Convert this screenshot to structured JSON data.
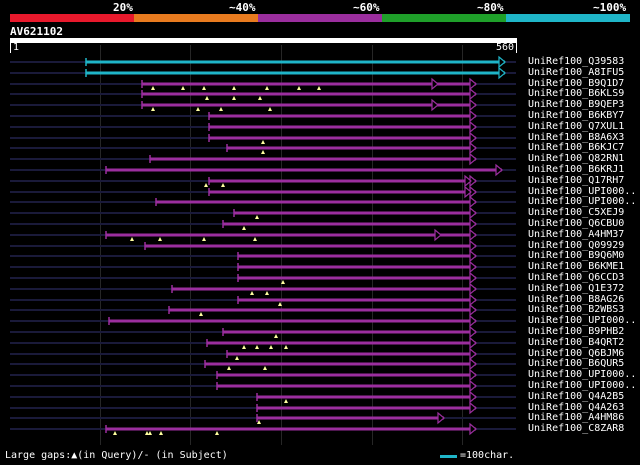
{
  "legend": {
    "labels": [
      "20%",
      "~40%",
      "~60%",
      "~80%",
      "~100%"
    ],
    "colors": [
      "#e8192c",
      "#e87b1f",
      "#9b2e9e",
      "#1fa02a",
      "#1fb5c8"
    ]
  },
  "query": {
    "id": "AV621102",
    "start_label": "1",
    "end_label": "560"
  },
  "hits": [
    {
      "id": "UniRef100_Q39583",
      "start": 116,
      "end": 752,
      "color": "#1fb5c8",
      "tri": [],
      "end_arrow": true
    },
    {
      "id": "UniRef100_A8IFU5",
      "start": 116,
      "end": 752,
      "color": "#1fb5c8",
      "tri": [],
      "end_arrow": true
    },
    {
      "id": "UniRef100_B9Q1D7",
      "start": 200,
      "end": 708,
      "color": "#9b2e9e",
      "tri": [
        218,
        263,
        295,
        340,
        390,
        440,
        470
      ],
      "end_arrow": true,
      "mid_arrow": 650
    },
    {
      "id": "UniRef100_B6KLS9",
      "start": 200,
      "end": 708,
      "color": "#9b2e9e",
      "tri": [
        300,
        340,
        380
      ],
      "end_arrow": true
    },
    {
      "id": "UniRef100_B9QEP3",
      "start": 200,
      "end": 708,
      "color": "#9b2e9e",
      "tri": [
        218,
        285,
        320,
        395
      ],
      "end_arrow": true,
      "mid_arrow": 650
    },
    {
      "id": "UniRef100_B6KBY7",
      "start": 302,
      "end": 708,
      "color": "#9b2e9e",
      "tri": [],
      "end_arrow": true
    },
    {
      "id": "UniRef100_Q7XUL1",
      "start": 302,
      "end": 708,
      "color": "#9b2e9e",
      "tri": [],
      "end_arrow": true
    },
    {
      "id": "UniRef100_B8A6X3",
      "start": 302,
      "end": 708,
      "color": "#9b2e9e",
      "tri": [
        385
      ],
      "end_arrow": true
    },
    {
      "id": "UniRef100_B6KJC7",
      "start": 330,
      "end": 708,
      "color": "#9b2e9e",
      "tri": [
        385
      ],
      "end_arrow": true
    },
    {
      "id": "UniRef100_Q82RN1",
      "start": 213,
      "end": 708,
      "color": "#9b2e9e",
      "tri": [],
      "end_arrow": true
    },
    {
      "id": "UniRef100_B6KRJ1",
      "start": 146,
      "end": 748,
      "color": "#9b2e9e",
      "tri": [],
      "end_arrow": true
    },
    {
      "id": "UniRef100_Q17RH7",
      "start": 302,
      "end": 708,
      "color": "#9b2e9e",
      "tri": [
        298,
        323
      ],
      "end_arrow": true,
      "mid_arrow": 700
    },
    {
      "id": "UniRef100_UPI000..",
      "start": 302,
      "end": 708,
      "color": "#9b2e9e",
      "tri": [],
      "end_arrow": true,
      "mid_arrow": 700
    },
    {
      "id": "UniRef100_UPI000..",
      "start": 222,
      "end": 708,
      "color": "#9b2e9e",
      "tri": [],
      "end_arrow": true
    },
    {
      "id": "UniRef100_C5XEJ9",
      "start": 341,
      "end": 708,
      "color": "#9b2e9e",
      "tri": [
        375
      ],
      "end_arrow": true
    },
    {
      "id": "UniRef100_Q6CBU0",
      "start": 323,
      "end": 708,
      "color": "#9b2e9e",
      "tri": [
        355
      ],
      "end_arrow": true
    },
    {
      "id": "UniRef100_A4HM37",
      "start": 146,
      "end": 708,
      "color": "#9b2e9e",
      "tri": [
        186,
        228,
        295,
        373
      ],
      "end_arrow": true,
      "mid_arrow": 655
    },
    {
      "id": "UniRef100_Q09929",
      "start": 205,
      "end": 708,
      "color": "#9b2e9e",
      "tri": [],
      "end_arrow": true
    },
    {
      "id": "UniRef100_B9Q6M0",
      "start": 347,
      "end": 708,
      "color": "#9b2e9e",
      "tri": [],
      "end_arrow": true
    },
    {
      "id": "UniRef100_B6KME1",
      "start": 347,
      "end": 708,
      "color": "#9b2e9e",
      "tri": [],
      "end_arrow": true
    },
    {
      "id": "UniRef100_Q6CCD3",
      "start": 347,
      "end": 708,
      "color": "#9b2e9e",
      "tri": [
        415
      ],
      "end_arrow": true
    },
    {
      "id": "UniRef100_Q1E372",
      "start": 246,
      "end": 708,
      "color": "#9b2e9e",
      "tri": [
        368,
        390
      ],
      "end_arrow": true
    },
    {
      "id": "UniRef100_B8AG26",
      "start": 347,
      "end": 708,
      "color": "#9b2e9e",
      "tri": [
        410
      ],
      "end_arrow": true
    },
    {
      "id": "UniRef100_B2WBS3",
      "start": 241,
      "end": 708,
      "color": "#9b2e9e",
      "tri": [
        290
      ],
      "end_arrow": true
    },
    {
      "id": "UniRef100_UPI000..",
      "start": 150,
      "end": 708,
      "color": "#9b2e9e",
      "tri": [],
      "end_arrow": true
    },
    {
      "id": "UniRef100_B9PHB2",
      "start": 323,
      "end": 708,
      "color": "#9b2e9e",
      "tri": [
        405
      ],
      "end_arrow": true
    },
    {
      "id": "UniRef100_B4QRT2",
      "start": 300,
      "end": 708,
      "color": "#9b2e9e",
      "tri": [
        355,
        375,
        397,
        420
      ],
      "end_arrow": true
    },
    {
      "id": "UniRef100_Q6BJM6",
      "start": 330,
      "end": 708,
      "color": "#9b2e9e",
      "tri": [
        345
      ],
      "end_arrow": true
    },
    {
      "id": "UniRef100_B6QUR5",
      "start": 296,
      "end": 708,
      "color": "#9b2e9e",
      "tri": [
        333,
        388
      ],
      "end_arrow": true
    },
    {
      "id": "UniRef100_UPI000..",
      "start": 315,
      "end": 708,
      "color": "#9b2e9e",
      "tri": [],
      "end_arrow": true
    },
    {
      "id": "UniRef100_UPI000..",
      "start": 315,
      "end": 708,
      "color": "#9b2e9e",
      "tri": [],
      "end_arrow": true
    },
    {
      "id": "UniRef100_Q4A2B5",
      "start": 376,
      "end": 708,
      "color": "#9b2e9e",
      "tri": [
        420
      ],
      "end_arrow": true
    },
    {
      "id": "UniRef100_Q4A263",
      "start": 376,
      "end": 708,
      "color": "#9b2e9e",
      "tri": [],
      "end_arrow": true
    },
    {
      "id": "UniRef100_A4HM86",
      "start": 376,
      "end": 660,
      "color": "#9b2e9e",
      "tri": [
        378
      ],
      "end_arrow": true
    },
    {
      "id": "UniRef100_C8ZAR8",
      "start": 146,
      "end": 708,
      "color": "#9b2e9e",
      "tri": [
        160,
        208,
        213,
        230,
        315
      ],
      "end_arrow": true
    }
  ],
  "footer": {
    "gaps_text": "Large gaps:▲(in Query)/- (in Subject)",
    "scale_text": "=100char."
  }
}
